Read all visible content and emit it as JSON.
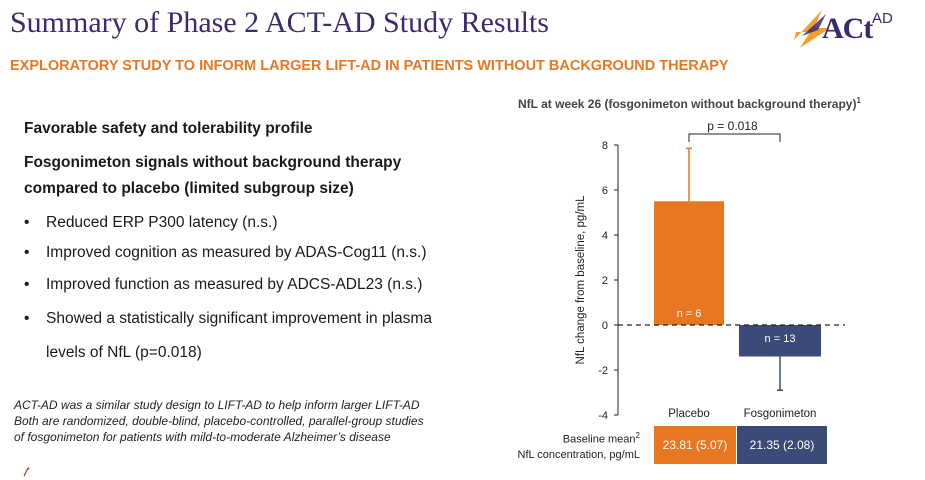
{
  "header": {
    "title": "Summary of Phase 2 ACT-AD Study Results",
    "subtitle": "EXPLORATORY STUDY TO INFORM LARGER LIFT-AD IN PATIENTS WITHOUT BACKGROUND THERAPY",
    "logo_text": "ACt",
    "logo_sup": "AD"
  },
  "left": {
    "heading1": "Favorable safety and tolerability profile",
    "heading2_line1": "Fosgonimeton signals without background therapy",
    "heading2_line2": "compared to placebo (limited subgroup size)",
    "bullets": [
      "Reduced ERP P300 latency (n.s.)",
      "Improved cognition as measured by ADAS-Cog11 (n.s.)",
      "Improved function as measured by ADCS-ADL23 (n.s.)",
      "Showed a statistically significant improvement in plasma"
    ],
    "bullet_continuation": "levels of NfL (p=0.018)",
    "bullet_glyph": "•",
    "note_lines": [
      "ACT-AD was a similar study design to LIFT-AD to help inform larger LIFT-AD",
      "Both are randomized, double-blind, placebo-controlled, parallel-group studies",
      "of fosgonimeton for patients with mild-to-moderate Alzheimer’s disease"
    ]
  },
  "baseline": {
    "label_line1": "Baseline mean",
    "label_sup": "2",
    "label_line2": "NfL concentration, pg/mL",
    "placebo": "23.81 (5.07)",
    "fosgonimeton": "21.35 (2.08)"
  },
  "colors": {
    "orange": "#e87722",
    "navy": "#3b4a77",
    "purple": "#3d2a6e"
  },
  "chart_data": {
    "type": "bar",
    "title": "NfL at week 26 (fosgonimeton without background therapy)",
    "title_sup": "1",
    "ylabel": "NfL change from baseline, pg/mL",
    "xlabel": "",
    "ylim": [
      -4,
      8
    ],
    "yticks": [
      -4,
      -2,
      0,
      2,
      4,
      6,
      8
    ],
    "categories": [
      "Placebo",
      "Fosgonimeton"
    ],
    "values": [
      5.5,
      -1.4
    ],
    "error_upper": [
      7.85,
      null
    ],
    "error_lower": [
      null,
      -2.9
    ],
    "n_labels": [
      "n = 6",
      "n = 13"
    ],
    "annotation": "p = 0.018",
    "grid": false,
    "zero_line": "dashed"
  }
}
